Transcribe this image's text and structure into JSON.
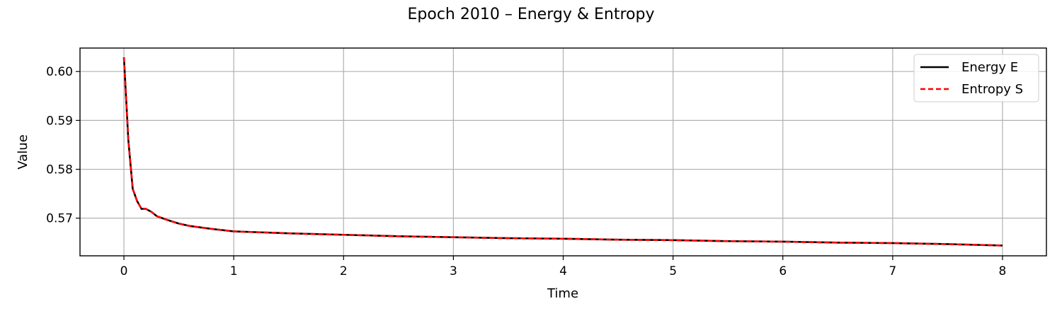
{
  "chart_data": {
    "type": "line",
    "title": "Epoch 2010 – Energy & Entropy",
    "xlabel": "Time",
    "ylabel": "Value",
    "xlim": [
      -0.4,
      8.4
    ],
    "ylim": [
      0.5623,
      0.6048
    ],
    "xticks": [
      0,
      1,
      2,
      3,
      4,
      5,
      6,
      7,
      8
    ],
    "yticks": [
      0.57,
      0.58,
      0.59,
      0.6
    ],
    "xtick_labels": [
      "0",
      "1",
      "2",
      "3",
      "4",
      "5",
      "6",
      "7",
      "8"
    ],
    "ytick_labels": [
      "0.57",
      "0.58",
      "0.59",
      "0.60"
    ],
    "grid": true,
    "legend_position": "top-right",
    "x": [
      0.0,
      0.04,
      0.08,
      0.12,
      0.16,
      0.2,
      0.25,
      0.3,
      0.4,
      0.5,
      0.6,
      0.8,
      1.0,
      1.5,
      2.0,
      2.5,
      3.0,
      3.5,
      4.0,
      4.5,
      5.0,
      5.5,
      6.0,
      6.5,
      7.0,
      7.5,
      8.0
    ],
    "series": [
      {
        "name": "Energy E",
        "color": "#000000",
        "style": "solid",
        "values": [
          0.6029,
          0.586,
          0.576,
          0.5735,
          0.5719,
          0.5719,
          0.5713,
          0.5704,
          0.5696,
          0.5689,
          0.5684,
          0.5678,
          0.5673,
          0.5669,
          0.5666,
          0.5663,
          0.5661,
          0.5659,
          0.5658,
          0.5656,
          0.5655,
          0.5653,
          0.5652,
          0.565,
          0.5649,
          0.5647,
          0.5644
        ]
      },
      {
        "name": "Entropy S",
        "color": "#ff0000",
        "style": "dashed",
        "values": [
          0.6029,
          0.586,
          0.576,
          0.5735,
          0.5719,
          0.5719,
          0.5713,
          0.5704,
          0.5696,
          0.5689,
          0.5684,
          0.5678,
          0.5673,
          0.5669,
          0.5666,
          0.5663,
          0.5661,
          0.5659,
          0.5658,
          0.5656,
          0.5655,
          0.5653,
          0.5652,
          0.565,
          0.5649,
          0.5647,
          0.5644
        ]
      }
    ]
  }
}
